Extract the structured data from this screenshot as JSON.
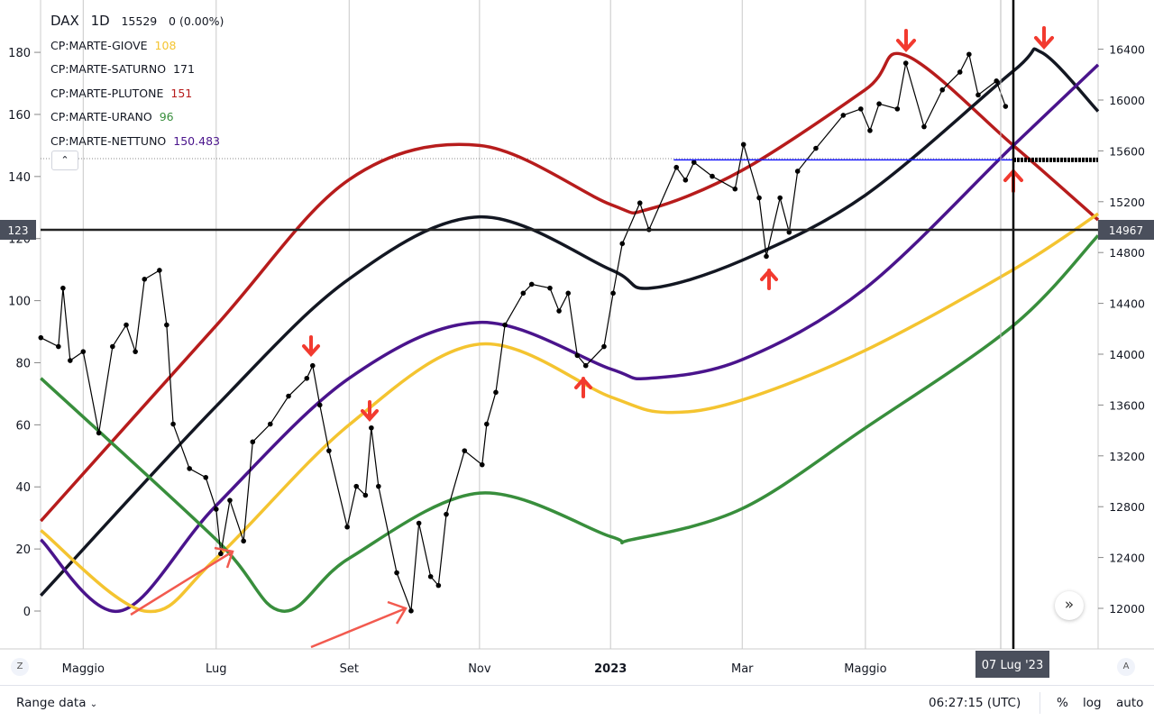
{
  "header": {
    "symbol": "DAX",
    "interval": "1D",
    "price": "15529",
    "change": "0 (0.00%)"
  },
  "indicators": [
    {
      "name": "CP:MARTE-GIOVE",
      "value": "108",
      "color": "#f4c430"
    },
    {
      "name": "CP:MARTE-SATURNO",
      "value": "171",
      "color": "#131722"
    },
    {
      "name": "CP:MARTE-PLUTONE",
      "value": "151",
      "color": "#b71c1c"
    },
    {
      "name": "CP:MARTE-URANO",
      "value": "96",
      "color": "#388e3c"
    },
    {
      "name": "CP:MARTE-NETTUNO",
      "value": "150.483",
      "color": "#4a148c"
    }
  ],
  "collapse_icon": "chevron-up-icon",
  "crosshair": {
    "left_label": "123",
    "right_label": "14967",
    "date_label": "07 Lug '23"
  },
  "bottom": {
    "range_label": "Range data",
    "time": "06:27:15 (UTC)",
    "percent": "%",
    "log": "log",
    "auto": "auto",
    "z": "Z",
    "a": "A",
    "scroll": "»"
  },
  "chart_data": {
    "type": "line",
    "x_unit": "months since 2022-04-01",
    "x_tick_labels": [
      {
        "t": 1,
        "label": "Maggio"
      },
      {
        "t": 3.04,
        "label": "Lug"
      },
      {
        "t": 5.08,
        "label": "Set"
      },
      {
        "t": 7.08,
        "label": "Nov"
      },
      {
        "t": 9.09,
        "label": "2023"
      },
      {
        "t": 11.11,
        "label": "Mar"
      },
      {
        "t": 13.0,
        "label": "Maggio"
      }
    ],
    "left_axis": {
      "range": [
        0,
        180
      ],
      "ticks": [
        0,
        20,
        40,
        60,
        80,
        100,
        120,
        140,
        160,
        180
      ]
    },
    "right_axis": {
      "range": [
        12000,
        16400
      ],
      "ticks": [
        12000,
        12400,
        12800,
        13200,
        13600,
        14000,
        14400,
        14800,
        15200,
        15600,
        16000,
        16400
      ]
    },
    "series": [
      {
        "name": "CP:MARTE-PLUTONE",
        "axis": "left",
        "color": "#b71c1c",
        "t": [
          0.35,
          3.04,
          5.08,
          7.08,
          9.09,
          9.68,
          11.11,
          13.0,
          13.62,
          15.27,
          16.57
        ],
        "values": [
          29,
          92,
          139,
          150,
          131,
          129.5,
          142,
          168,
          179,
          150,
          126
        ]
      },
      {
        "name": "CP:MARTE-SATURNO",
        "axis": "left",
        "color": "#131722",
        "t": [
          0.35,
          3.04,
          5.08,
          7.08,
          9.09,
          9.68,
          11.11,
          13.0,
          15.27,
          15.7,
          16.57
        ],
        "values": [
          5,
          66,
          107,
          127,
          110,
          104,
          113,
          134,
          174,
          180,
          161
        ]
      },
      {
        "name": "CP:MARTE-NETTUNO",
        "axis": "left",
        "color": "#4a148c",
        "t": [
          0.35,
          1.56,
          3.04,
          5.08,
          7.08,
          9.09,
          9.68,
          11.11,
          13.0,
          15.27,
          16.57
        ],
        "values": [
          23,
          0,
          34,
          75,
          93,
          78,
          75,
          81,
          104,
          150,
          176
        ]
      },
      {
        "name": "CP:MARTE-GIOVE",
        "axis": "left",
        "color": "#f4c430",
        "t": [
          0.35,
          1.94,
          3.04,
          5.08,
          7.08,
          9.09,
          9.96,
          11.11,
          13.0,
          15.27,
          16.57
        ],
        "values": [
          26,
          0,
          17,
          60,
          86,
          69,
          64,
          68,
          84,
          110,
          128
        ]
      },
      {
        "name": "CP:MARTE-URANO",
        "axis": "left",
        "color": "#388e3c",
        "t": [
          0.35,
          3.04,
          4.05,
          5.08,
          7.08,
          9.09,
          9.41,
          11.11,
          13.0,
          15.27,
          16.57
        ],
        "values": [
          75,
          23,
          0,
          17,
          38,
          24,
          23,
          33,
          59,
          92,
          121
        ]
      },
      {
        "name": "DAX",
        "axis": "right",
        "color": "#000000",
        "t": [
          0.35,
          0.62,
          0.69,
          0.8,
          1.0,
          1.24,
          1.45,
          1.66,
          1.8,
          1.94,
          2.17,
          2.28,
          2.38,
          2.63,
          2.88,
          3.04,
          3.11,
          3.25,
          3.46,
          3.6,
          3.87,
          4.15,
          4.43,
          4.52,
          4.63,
          4.77,
          5.05,
          5.19,
          5.33,
          5.42,
          5.53,
          5.81,
          6.03,
          6.15,
          6.33,
          6.45,
          6.57,
          6.85,
          7.12,
          7.19,
          7.33,
          7.47,
          7.75,
          7.88,
          8.16,
          8.3,
          8.44,
          8.58,
          8.71,
          8.99,
          9.13,
          9.27,
          9.54,
          9.68,
          10.1,
          10.24,
          10.37,
          10.65,
          11.0,
          11.13,
          11.37,
          11.48,
          11.69,
          11.83,
          11.96,
          12.24,
          12.66,
          12.93,
          13.07,
          13.21,
          13.49,
          13.62,
          13.9,
          14.18,
          14.45,
          14.59,
          14.73,
          15.01,
          15.15
        ],
        "values": [
          14130,
          14060,
          14520,
          13950,
          14020,
          13380,
          14060,
          14230,
          14020,
          14590,
          14660,
          14230,
          13450,
          13100,
          13030,
          12780,
          12430,
          12850,
          12530,
          13310,
          13450,
          13670,
          13810,
          13910,
          13600,
          13240,
          12640,
          12960,
          12890,
          13420,
          12960,
          12280,
          11980,
          12670,
          12250,
          12180,
          12740,
          13240,
          13130,
          13450,
          13700,
          14230,
          14480,
          14550,
          14520,
          14340,
          14480,
          13990,
          13910,
          14060,
          14480,
          14870,
          15190,
          14980,
          15470,
          15370,
          15510,
          15400,
          15300,
          15650,
          15230,
          14770,
          15230,
          14960,
          15440,
          15620,
          15880,
          15930,
          15760,
          15970,
          15930,
          16290,
          15790,
          16080,
          16220,
          16360,
          16040,
          16150,
          15950
        ]
      }
    ],
    "horizontal_levels": [
      {
        "axis": "right",
        "value": 15529,
        "style": "dotted"
      },
      {
        "axis": "right",
        "value": 14967,
        "style": "crosshair"
      },
      {
        "axis": "right",
        "value": 15529,
        "style": "blue-segment",
        "from_t": 10.06,
        "to_t": 15.27
      }
    ]
  }
}
